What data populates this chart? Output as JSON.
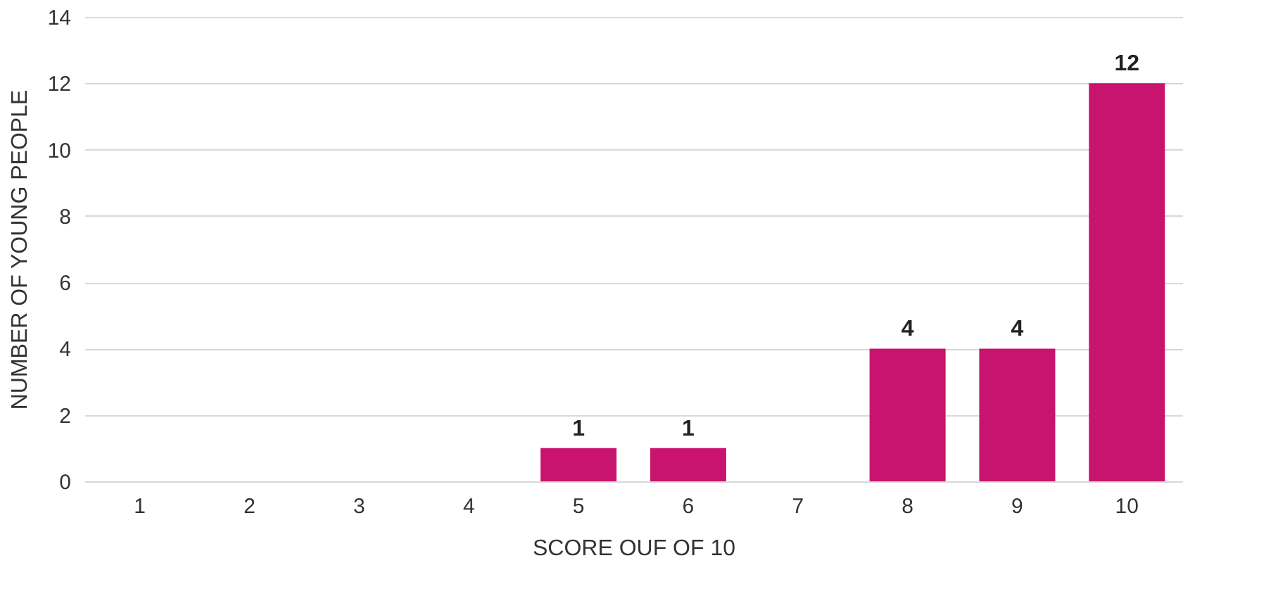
{
  "chart_data": {
    "type": "bar",
    "xlabel": "SCORE OUF OF 10",
    "ylabel": "NUMBER OF YOUNG PEOPLE",
    "categories": [
      "1",
      "2",
      "3",
      "4",
      "5",
      "6",
      "7",
      "8",
      "9",
      "10"
    ],
    "values": [
      0,
      0,
      0,
      0,
      1,
      1,
      0,
      4,
      4,
      12
    ],
    "value_labels": [
      null,
      null,
      null,
      null,
      "1",
      "1",
      null,
      "4",
      "4",
      "12"
    ],
    "color": "#c8146e",
    "ylim": [
      0,
      14
    ],
    "yticks": [
      0,
      2,
      4,
      6,
      8,
      10,
      12,
      14
    ],
    "grid": "y"
  }
}
